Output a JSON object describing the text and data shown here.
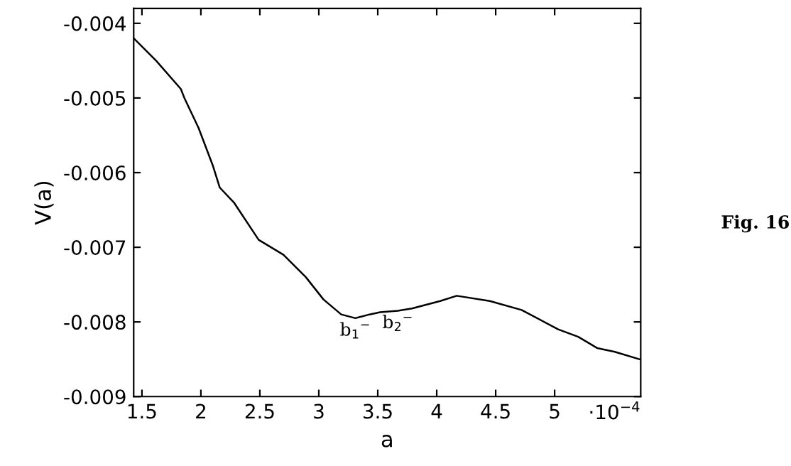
{
  "chart_data": {
    "type": "line",
    "xlabel": "a",
    "ylabel": "V(a)",
    "x": [
      1.43,
      1.62,
      1.83,
      1.86,
      1.98,
      2.1,
      2.16,
      2.28,
      2.49,
      2.7,
      2.89,
      3.04,
      3.19,
      3.31,
      3.43,
      3.52,
      3.67,
      3.79,
      4.03,
      4.17,
      4.45,
      4.72,
      5.03,
      5.2,
      5.36,
      5.51,
      5.72
    ],
    "series": [
      {
        "color": "#000000",
        "values": [
          -0.0042,
          -0.0045,
          -0.00488,
          -0.005,
          -0.0054,
          -0.0059,
          -0.0062,
          -0.0064,
          -0.0069,
          -0.0071,
          -0.0074,
          -0.0077,
          -0.0079,
          -0.00795,
          -0.0079,
          -0.00787,
          -0.00785,
          -0.00782,
          -0.00772,
          -0.00765,
          -0.00772,
          -0.00784,
          -0.0081,
          -0.0082,
          -0.00835,
          -0.0084,
          -0.0085
        ]
      }
    ],
    "xlim": [
      1.43,
      5.73
    ],
    "ylim": [
      -0.009,
      -0.0038
    ],
    "xticks": [
      1.5,
      2,
      2.5,
      3,
      3.5,
      4,
      4.5,
      5
    ],
    "yticks": [
      -0.009,
      -0.008,
      -0.007,
      -0.006,
      -0.005,
      -0.004
    ],
    "grid": false,
    "marker": "none",
    "line_style": "solid",
    "annotations": [
      {
        "text": "b$_{1}$$^{−}$",
        "x": 3.31,
        "y": -0.00795
      },
      {
        "text": "b$_{2}$$^{−}$",
        "x": 3.67,
        "y": -0.00785
      },
      "·10$^{−4}$",
      "Fig. 16"
    ]
  }
}
